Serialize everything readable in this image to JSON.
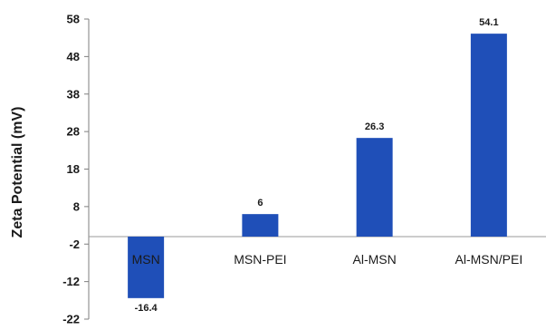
{
  "chart_data": {
    "type": "bar",
    "title": "",
    "xlabel": "",
    "ylabel": "Zeta Potential (mV)",
    "categories": [
      "MSN",
      "MSN-PEI",
      "Al-MSN",
      "Al-MSN/PEI"
    ],
    "values": [
      -16.4,
      6,
      26.3,
      54.1
    ],
    "data_labels": [
      "-16.4",
      "6",
      "26.3",
      "54.1"
    ],
    "ylim": [
      -22,
      58
    ],
    "yticks": [
      -22,
      -12,
      -2,
      8,
      18,
      28,
      38,
      48,
      58
    ],
    "ytick_labels": [
      "-22",
      "-12",
      "-2",
      "8",
      "18",
      "28",
      "38",
      "48",
      "58"
    ],
    "grid": false,
    "legend": "none",
    "bar_color": "#1f4fb8"
  }
}
